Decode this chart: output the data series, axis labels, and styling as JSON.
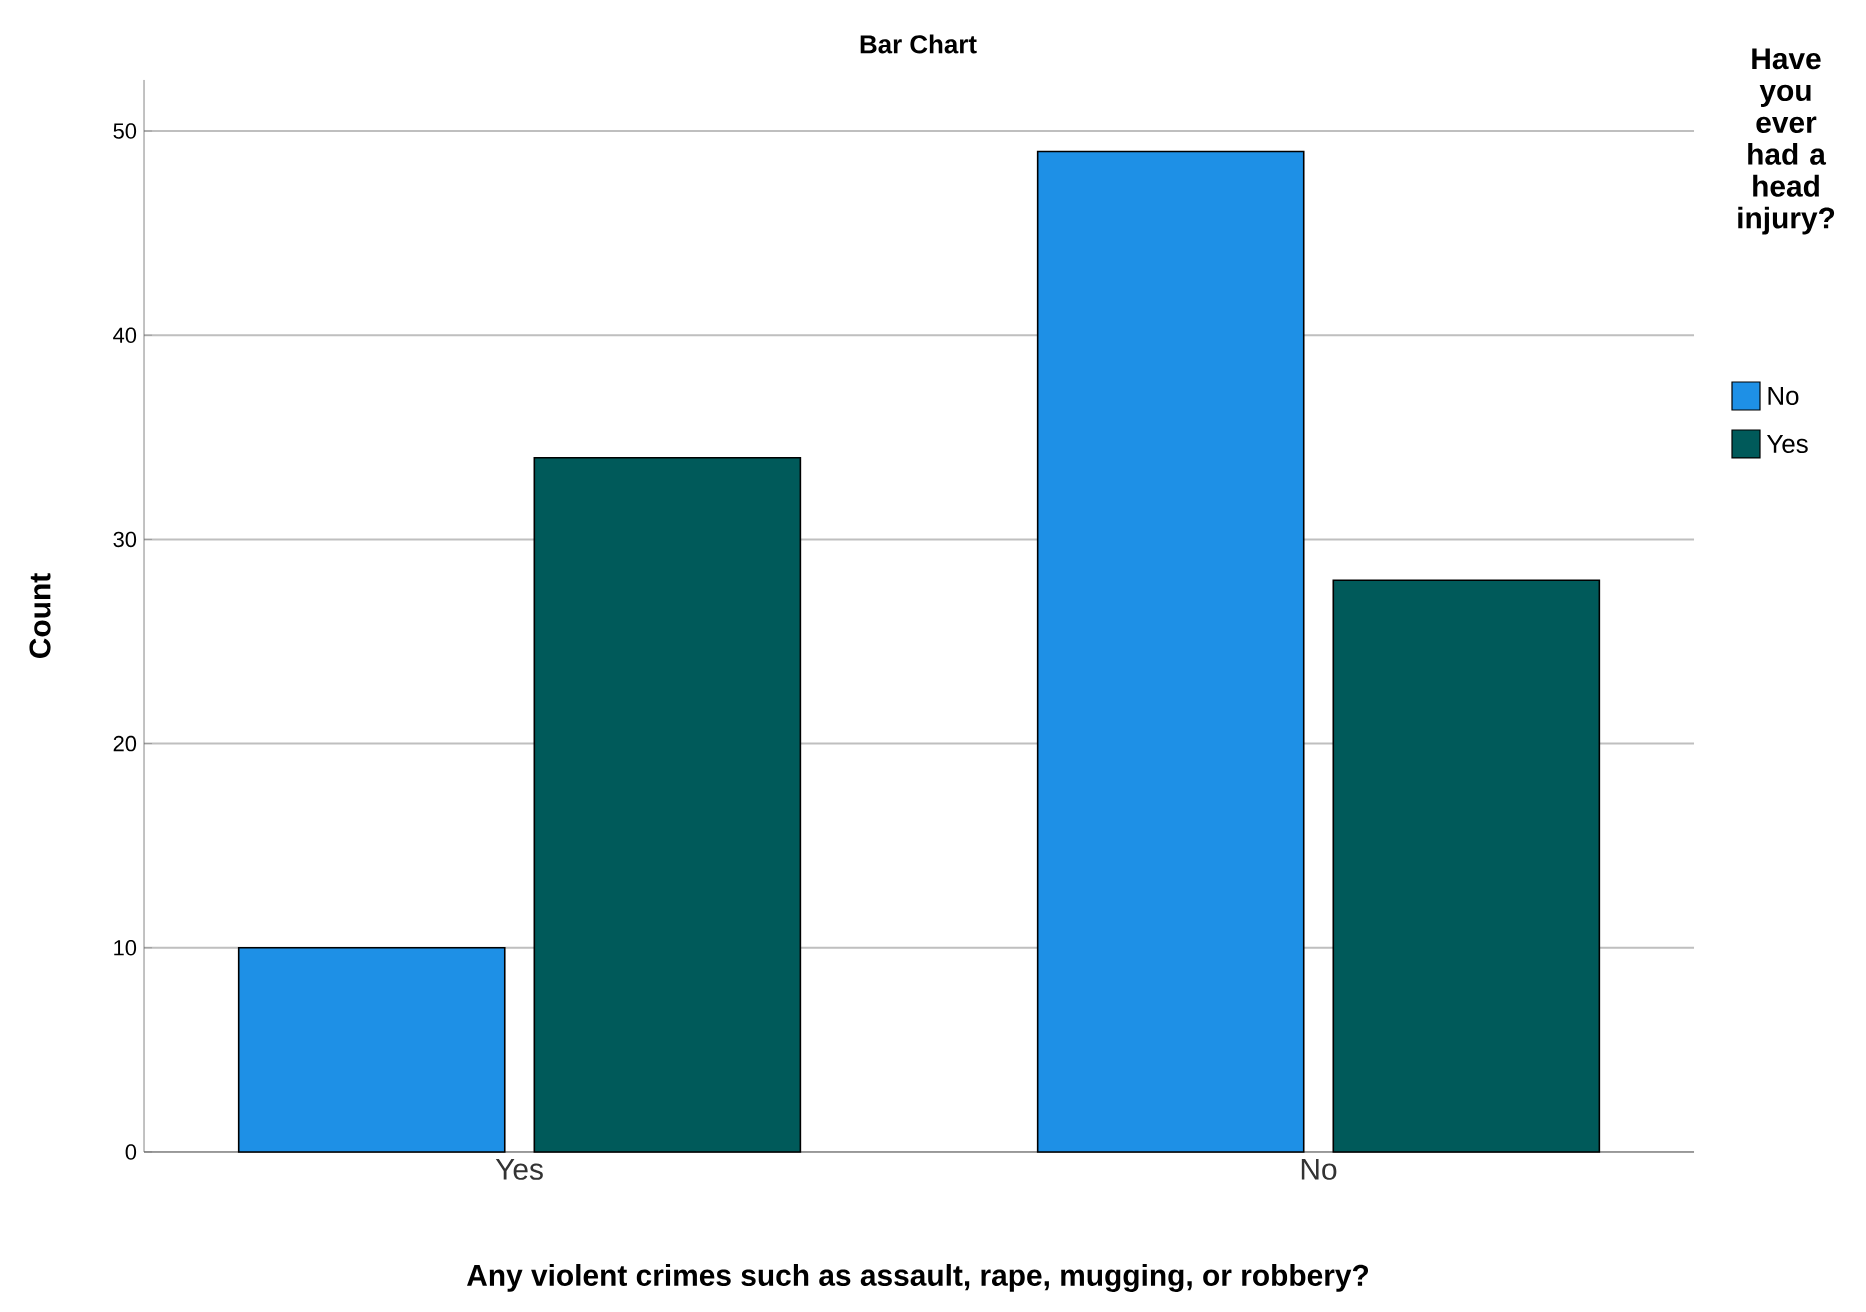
{
  "chart_data": {
    "type": "bar",
    "title": "Bar Chart",
    "xlabel": "Any violent crimes such as assault, rape, mugging, or robbery?",
    "ylabel": "Count",
    "legend_title": "Have you ever had a head injury?",
    "categories": [
      "Yes",
      "No"
    ],
    "series": [
      {
        "name": "No",
        "color": "#1e90e6",
        "values": [
          10,
          49
        ]
      },
      {
        "name": "Yes",
        "color": "#005a5a",
        "values": [
          34,
          28
        ]
      }
    ],
    "ylim": [
      0,
      52.5
    ],
    "yticks": [
      0,
      10,
      20,
      30,
      40,
      50
    ],
    "grid": "y",
    "legend": "right"
  }
}
